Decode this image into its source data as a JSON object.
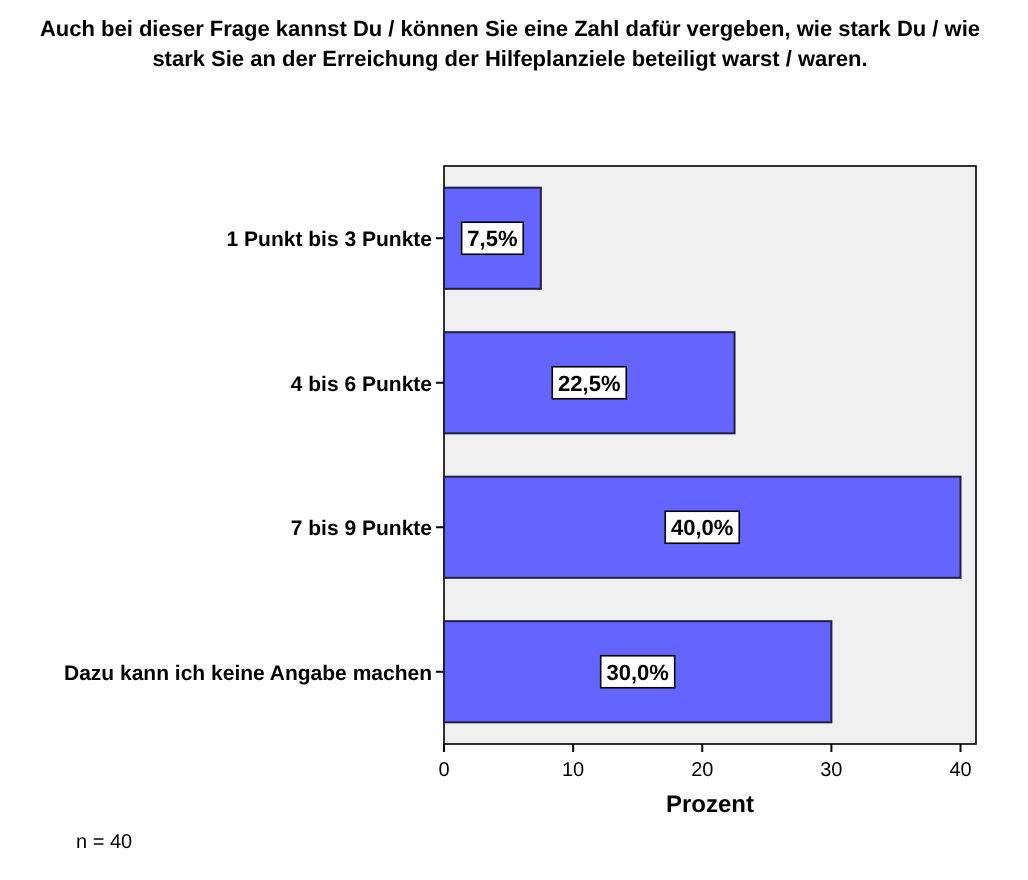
{
  "chart_data": {
    "type": "bar",
    "orientation": "horizontal",
    "title": "Auch bei dieser Frage kannst Du / können Sie eine Zahl dafür vergeben, wie stark Du / wie stark Sie an der Erreichung der Hilfeplanziele beteiligt warst / waren.",
    "xlabel": "Prozent",
    "categories": [
      "1 Punkt bis 3 Punkte",
      "4 bis 6 Punkte",
      "7 bis 9 Punkte",
      "Dazu kann ich keine Angabe machen"
    ],
    "values": [
      7.5,
      22.5,
      40.0,
      30.0
    ],
    "value_labels": [
      "7,5%",
      "22,5%",
      "40,0%",
      "30,0%"
    ],
    "color": "#6464ff",
    "xlim": [
      0,
      41.2
    ],
    "xticks": [
      0,
      10,
      20,
      30,
      40
    ],
    "annotations": [
      "n = 40"
    ]
  }
}
